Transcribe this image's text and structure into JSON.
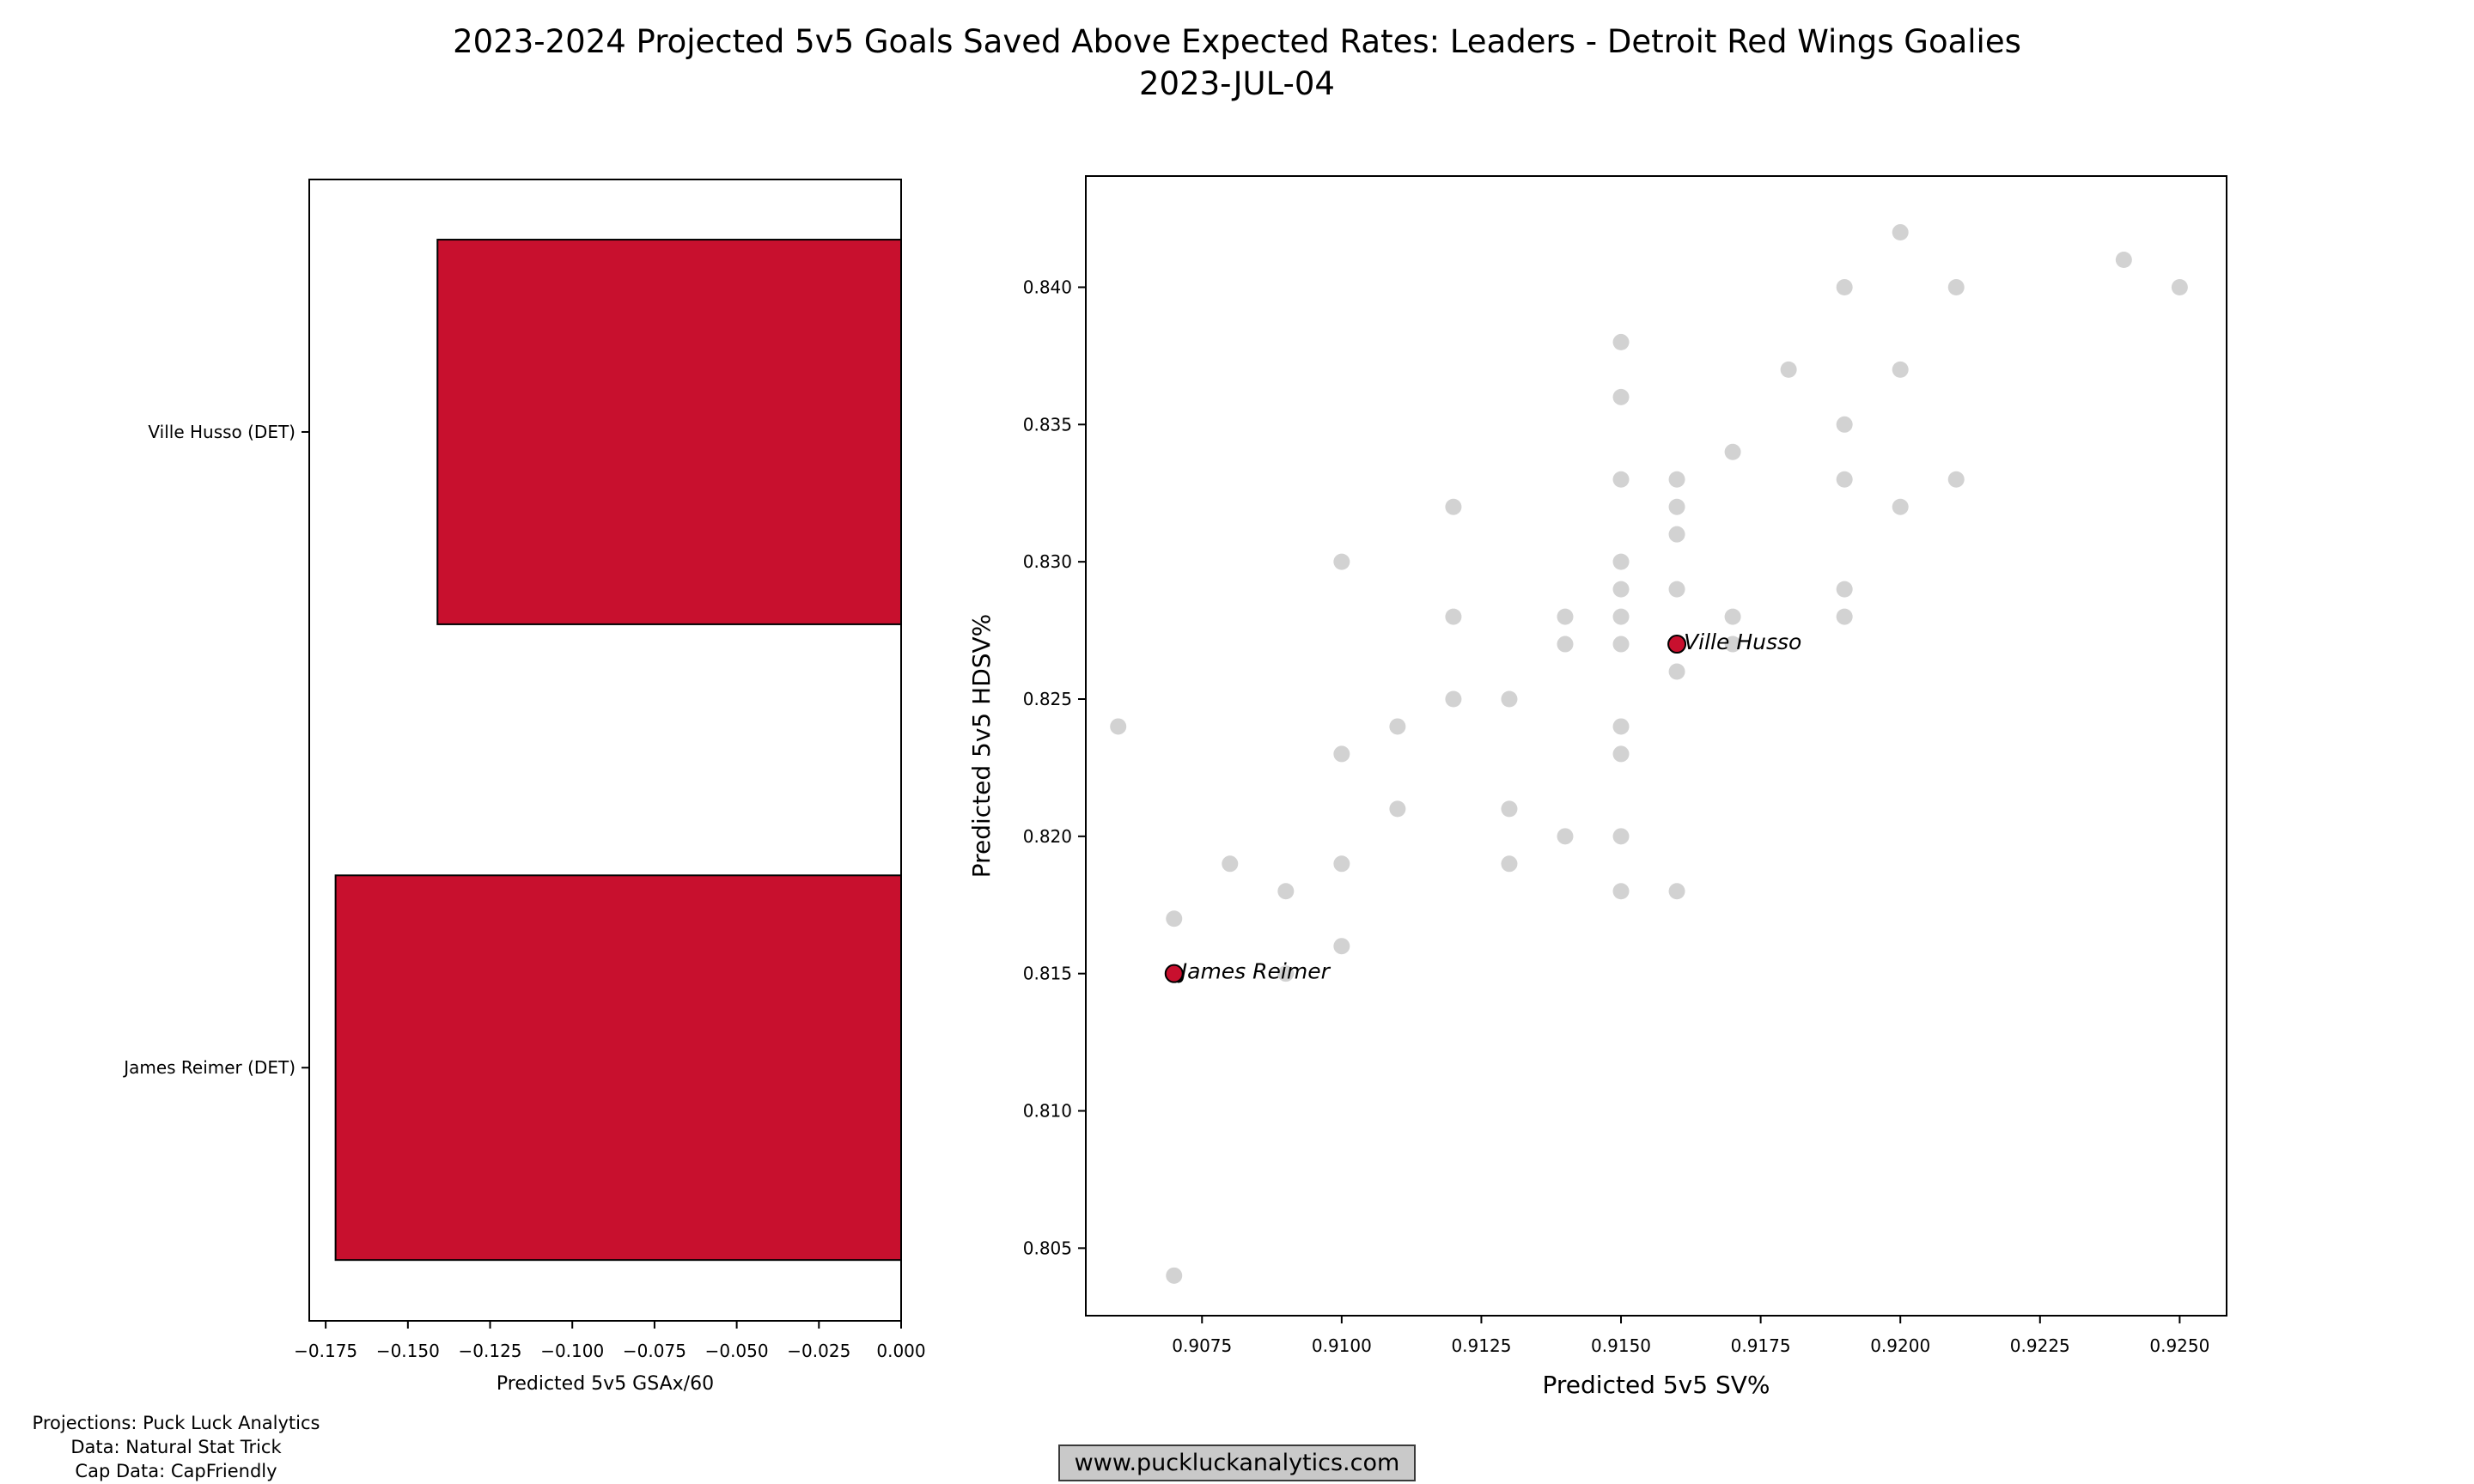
{
  "title": {
    "line1": "2023-2024 Projected 5v5 Goals Saved Above Expected Rates: Leaders - Detroit Red Wings Goalies",
    "line2": "2023-JUL-04"
  },
  "credits": {
    "line1": "Projections: Puck Luck Analytics",
    "line2": "Data: Natural Stat Trick",
    "line3": "Cap Data: CapFriendly"
  },
  "footer": {
    "website": "www.puckluckanalytics.com"
  },
  "colors": {
    "accent_red": "#c8102e",
    "gray_point": "#d2d2d2",
    "spine": "#000000",
    "box_bg": "#c9c9c9",
    "box_border": "#3a3a3a"
  },
  "chart_data": [
    {
      "type": "bar",
      "orientation": "horizontal",
      "categories": [
        "Ville Husso (DET)",
        "James Reimer (DET)"
      ],
      "values": [
        -0.141,
        -0.172
      ],
      "xlabel": "Predicted 5v5 GSAx/60",
      "xlim": [
        -0.18,
        0
      ],
      "xticks": [
        -0.175,
        -0.15,
        -0.125,
        -0.1,
        -0.075,
        -0.05,
        -0.025,
        0.0
      ],
      "xtick_labels": [
        "−0.175",
        "−0.150",
        "−0.125",
        "−0.100",
        "−0.075",
        "−0.050",
        "−0.025",
        "0.000"
      ],
      "bar_color": "#c8102e",
      "bar_edge_color": "#000000",
      "grid": false
    },
    {
      "type": "scatter",
      "xlabel": "Predicted 5v5 SV%",
      "ylabel": "Predicted 5v5 HDSV%",
      "xlim": [
        0.90542,
        0.92584
      ],
      "ylim": [
        0.80254,
        0.84405
      ],
      "xticks": [
        0.9075,
        0.91,
        0.9125,
        0.915,
        0.9175,
        0.92,
        0.9225,
        0.925
      ],
      "xtick_labels": [
        "0.9075",
        "0.9100",
        "0.9125",
        "0.9150",
        "0.9175",
        "0.9200",
        "0.9225",
        "0.9250"
      ],
      "yticks": [
        0.805,
        0.81,
        0.815,
        0.82,
        0.825,
        0.83,
        0.835,
        0.84
      ],
      "ytick_labels": [
        "0.805",
        "0.810",
        "0.815",
        "0.820",
        "0.825",
        "0.830",
        "0.835",
        "0.840"
      ],
      "grid": false,
      "point_color": "#d2d2d2",
      "highlight_color": "#c8102e",
      "gray_points": [
        [
          0.906,
          0.824
        ],
        [
          0.907,
          0.817
        ],
        [
          0.907,
          0.804
        ],
        [
          0.908,
          0.819
        ],
        [
          0.909,
          0.818
        ],
        [
          0.909,
          0.815
        ],
        [
          0.91,
          0.83
        ],
        [
          0.91,
          0.823
        ],
        [
          0.91,
          0.819
        ],
        [
          0.91,
          0.816
        ],
        [
          0.911,
          0.824
        ],
        [
          0.911,
          0.821
        ],
        [
          0.912,
          0.832
        ],
        [
          0.912,
          0.828
        ],
        [
          0.912,
          0.825
        ],
        [
          0.913,
          0.825
        ],
        [
          0.913,
          0.821
        ],
        [
          0.913,
          0.819
        ],
        [
          0.914,
          0.828
        ],
        [
          0.914,
          0.827
        ],
        [
          0.914,
          0.82
        ],
        [
          0.915,
          0.838
        ],
        [
          0.915,
          0.836
        ],
        [
          0.915,
          0.833
        ],
        [
          0.915,
          0.83
        ],
        [
          0.915,
          0.829
        ],
        [
          0.915,
          0.828
        ],
        [
          0.915,
          0.827
        ],
        [
          0.915,
          0.824
        ],
        [
          0.915,
          0.823
        ],
        [
          0.915,
          0.82
        ],
        [
          0.915,
          0.818
        ],
        [
          0.916,
          0.833
        ],
        [
          0.916,
          0.832
        ],
        [
          0.916,
          0.831
        ],
        [
          0.916,
          0.829
        ],
        [
          0.916,
          0.826
        ],
        [
          0.916,
          0.818
        ],
        [
          0.917,
          0.834
        ],
        [
          0.917,
          0.828
        ],
        [
          0.917,
          0.827
        ],
        [
          0.918,
          0.837
        ],
        [
          0.919,
          0.84
        ],
        [
          0.919,
          0.835
        ],
        [
          0.919,
          0.833
        ],
        [
          0.919,
          0.829
        ],
        [
          0.919,
          0.828
        ],
        [
          0.92,
          0.842
        ],
        [
          0.92,
          0.837
        ],
        [
          0.92,
          0.832
        ],
        [
          0.921,
          0.84
        ],
        [
          0.921,
          0.833
        ],
        [
          0.924,
          0.841
        ],
        [
          0.925,
          0.84
        ]
      ],
      "highlight_points": [
        {
          "name": "Ville Husso",
          "x": 0.916,
          "y": 0.827
        },
        {
          "name": "James Reimer",
          "x": 0.907,
          "y": 0.815
        }
      ]
    }
  ]
}
